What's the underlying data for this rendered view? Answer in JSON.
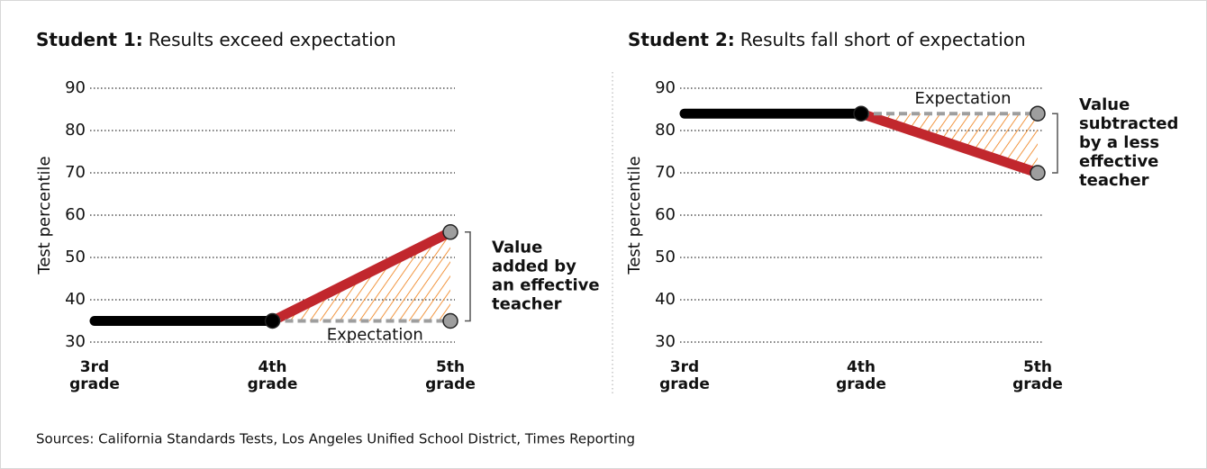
{
  "chart_data": [
    {
      "type": "line",
      "title_prefix": "Student 1:",
      "title": "Results exceed expectation",
      "ylabel": "Test percentile",
      "categories": [
        "3rd grade",
        "4th grade",
        "5th grade"
      ],
      "ylim": [
        30,
        90
      ],
      "yticks": [
        30,
        40,
        50,
        60,
        70,
        80,
        90
      ],
      "grid": true,
      "series": [
        {
          "color": "#000000",
          "values": [
            35,
            35,
            null
          ]
        },
        {
          "color": "#c1272d",
          "values": [
            null,
            35,
            56
          ],
          "marker_colors": [
            null,
            "#000000",
            "#9e9e9e"
          ]
        },
        {
          "color": "#9e9e9e",
          "dash": true,
          "values": [
            null,
            35,
            35
          ],
          "marker_colors": [
            null,
            null,
            "#9e9e9e"
          ]
        }
      ],
      "hatch_color": "#f08a2c",
      "expectation_label": "Expectation",
      "annotation": [
        "Value",
        "added by",
        "an effective",
        "teacher"
      ]
    },
    {
      "type": "line",
      "title_prefix": "Student 2:",
      "title": "Results fall short of expectation",
      "ylabel": "Test percentile",
      "categories": [
        "3rd grade",
        "4th grade",
        "5th grade"
      ],
      "ylim": [
        30,
        90
      ],
      "yticks": [
        30,
        40,
        50,
        60,
        70,
        80,
        90
      ],
      "grid": true,
      "series": [
        {
          "color": "#000000",
          "values": [
            84,
            84,
            null
          ]
        },
        {
          "color": "#c1272d",
          "values": [
            null,
            84,
            70
          ],
          "marker_colors": [
            null,
            "#000000",
            "#9e9e9e"
          ]
        },
        {
          "color": "#9e9e9e",
          "dash": true,
          "values": [
            null,
            84,
            84
          ],
          "marker_colors": [
            null,
            null,
            "#9e9e9e"
          ]
        }
      ],
      "hatch_color": "#f08a2c",
      "expectation_label": "Expectation",
      "annotation": [
        "Value",
        "subtracted",
        "by a less",
        "effective",
        "teacher"
      ]
    }
  ],
  "source": "Sources: California Standards Tests, Los Angeles Unified School District, Times Reporting"
}
